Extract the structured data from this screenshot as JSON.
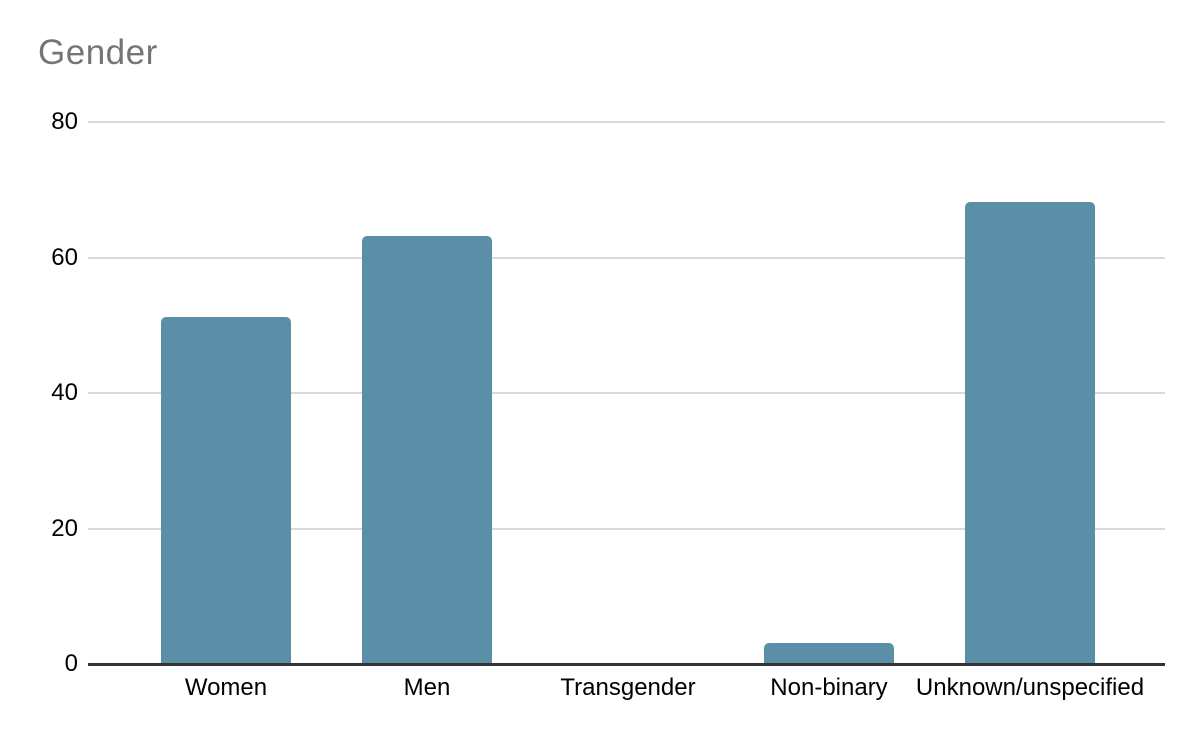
{
  "chart_data": {
    "type": "bar",
    "title": "Gender",
    "categories": [
      "Women",
      "Men",
      "Transgender",
      "Non-binary",
      "Unknown/unspecified"
    ],
    "values": [
      51,
      63,
      0,
      3,
      68
    ],
    "yticks": [
      0,
      20,
      40,
      60,
      80
    ],
    "ylim": [
      0,
      80
    ],
    "xlabel": "",
    "ylabel": "",
    "grid": "horizontal gridlines at each y tick",
    "legend": "none",
    "bar_color": "#5b8fa8",
    "title_color": "#757575",
    "axis_text_color": "#000000",
    "gridline_color": "#d9d9d9",
    "axis_line_color": "#333333",
    "background_color": "#ffffff"
  }
}
